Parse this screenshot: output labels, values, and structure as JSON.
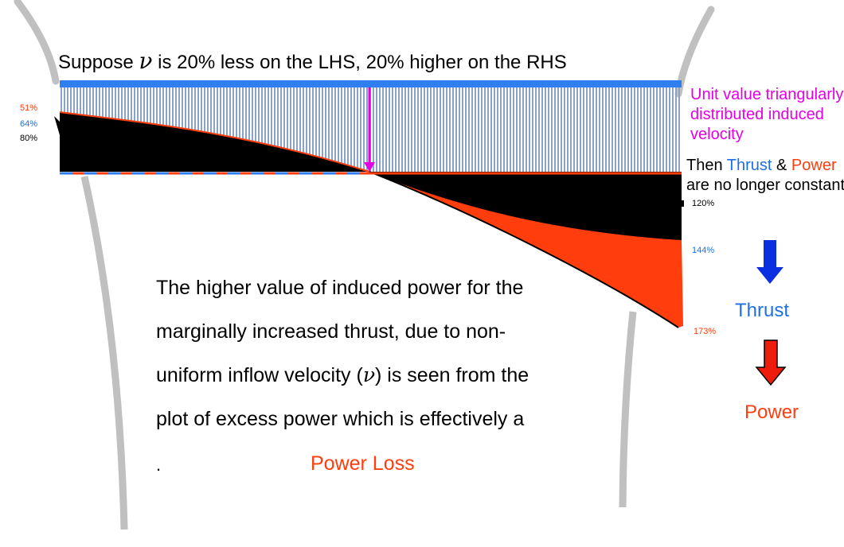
{
  "title": {
    "prefix": "Suppose ",
    "symbol": "ν",
    "suffix": " is 20% less on the LHS, 20% higher on the RHS"
  },
  "left_percentages": {
    "low": "51%",
    "mid": "64%",
    "base": "80%"
  },
  "right_percentages": {
    "base": "120%",
    "mid": "144%",
    "high": "173%"
  },
  "unit_note": {
    "line1": "Unit value triangularly",
    "line2": "distributed induced",
    "line3": "velocity"
  },
  "consequence": {
    "then": "Then ",
    "thrust_word": "Thrust",
    "amp": " & ",
    "power_word": "Power",
    "line2": "are no longer constant"
  },
  "legend": {
    "thrust_label": "Thrust",
    "power_label": "Power"
  },
  "body": {
    "line1": "The higher value of induced power for the",
    "line2": "marginally increased thrust, due to non-",
    "line3_prefix": "uniform inflow velocity (",
    "line3_symbol": "ν",
    "line3_suffix": ") is seen from the",
    "line4": "plot of excess power which is effectively a",
    "bullet": ".",
    "power_loss": "Power Loss"
  },
  "colors": {
    "blue_bar": "#2f7ef0",
    "stripe": "#8aa4c8",
    "black_fill": "#000000",
    "red_fill": "#ff3d0d",
    "magenta": "#e400e4",
    "thrust_blue": "#1f6fe8",
    "power_red": "#ff3d0d",
    "arrow_blue": "#0a2fe0",
    "arrow_red": "#ee1c0c",
    "grey_blade": "#c0c0c0"
  }
}
